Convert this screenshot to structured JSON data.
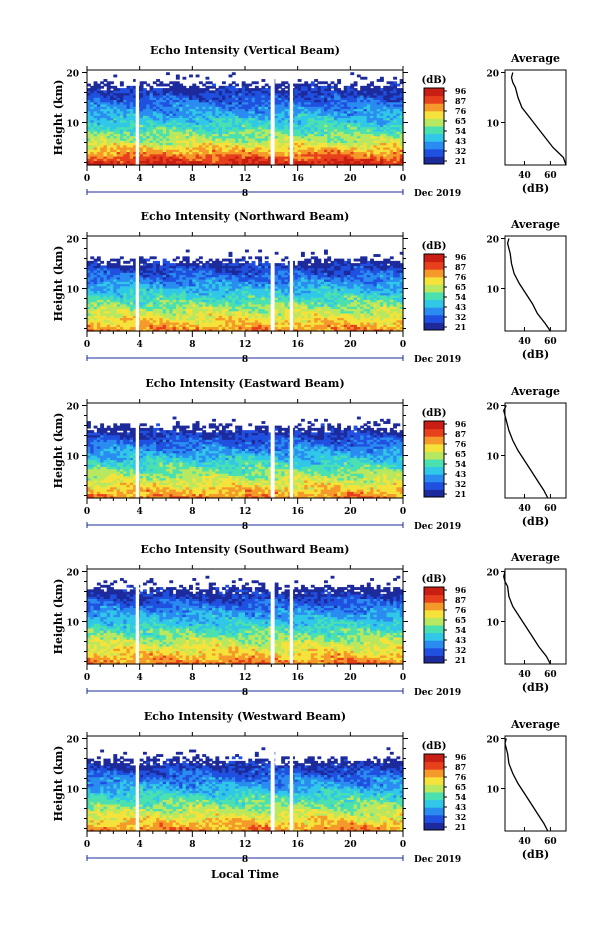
{
  "colorbar": {
    "unit": "(dB)",
    "tick_labels": [
      "96",
      "87",
      "76",
      "65",
      "54",
      "43",
      "32",
      "21"
    ],
    "tick_labels_east_south_west": [
      "96",
      "87",
      "76",
      "65",
      "54",
      "43",
      "32",
      "21"
    ],
    "colors": [
      "#1c2a9c",
      "#2050e0",
      "#2a8cf0",
      "#31c8e8",
      "#4be0b0",
      "#b8e860",
      "#f5e23a",
      "#f59a2a",
      "#e8401c",
      "#c81e14"
    ]
  },
  "xaxis": {
    "tick_labels": [
      "0",
      "4",
      "8",
      "12",
      "16",
      "20",
      "0"
    ],
    "date_label": "Dec 2019",
    "day_label": "8",
    "xlabel": "Local Time"
  },
  "yaxis": {
    "label": "Height (km)",
    "tick_labels": [
      "20",
      "10"
    ]
  },
  "average": {
    "title": "Average",
    "xlabel": "(dB)",
    "x_tick_labels": [
      "40",
      "60"
    ]
  },
  "chart_data": [
    {
      "type": "heatmap",
      "title": "Echo Intensity (Vertical Beam)",
      "x_hours": [
        0,
        24
      ],
      "ylim_km": [
        1.5,
        20.5
      ],
      "clim_db": [
        21,
        96
      ],
      "data_gaps_hours": [
        [
          3.7,
          3.95
        ],
        [
          13.95,
          14.25
        ],
        [
          15.4,
          15.65
        ]
      ],
      "average_profile": {
        "height_km": [
          1.5,
          3,
          5,
          7,
          9,
          11,
          13,
          15,
          17,
          18,
          19,
          20
        ],
        "intensity_db": [
          72,
          70,
          62,
          56,
          50,
          44,
          38,
          35,
          33,
          31,
          30,
          31
        ]
      }
    },
    {
      "type": "heatmap",
      "title": "Echo Intensity (Northward Beam)",
      "x_hours": [
        0,
        24
      ],
      "ylim_km": [
        1.5,
        20.5
      ],
      "clim_db": [
        21,
        96
      ],
      "data_gaps_hours": [
        [
          3.7,
          3.95
        ],
        [
          13.95,
          14.25
        ],
        [
          15.4,
          15.65
        ]
      ],
      "average_profile": {
        "height_km": [
          1.5,
          3,
          5,
          7,
          9,
          11,
          13,
          15,
          17,
          18,
          19,
          20
        ],
        "intensity_db": [
          60,
          56,
          50,
          46,
          41,
          36,
          32,
          30,
          29,
          28,
          27,
          28
        ]
      }
    },
    {
      "type": "heatmap",
      "title": "Echo Intensity (Eastward Beam)",
      "x_hours": [
        0,
        24
      ],
      "ylim_km": [
        1.5,
        20.5
      ],
      "clim_db": [
        21,
        96
      ],
      "data_gaps_hours": [
        [
          3.7,
          3.95
        ],
        [
          13.95,
          14.25
        ],
        [
          15.4,
          15.65
        ]
      ],
      "average_profile": {
        "height_km": [
          1.5,
          3,
          5,
          7,
          9,
          11,
          13,
          15,
          17,
          18,
          19,
          20
        ],
        "intensity_db": [
          58,
          55,
          50,
          45,
          40,
          35,
          31,
          28,
          26,
          25,
          24,
          26
        ]
      }
    },
    {
      "type": "heatmap",
      "title": "Echo Intensity (Southward Beam)",
      "x_hours": [
        0,
        24
      ],
      "ylim_km": [
        1.5,
        20.5
      ],
      "clim_db": [
        21,
        96
      ],
      "data_gaps_hours": [
        [
          3.7,
          3.95
        ],
        [
          13.95,
          14.25
        ],
        [
          15.4,
          15.65
        ]
      ],
      "average_profile": {
        "height_km": [
          1.5,
          3,
          5,
          7,
          9,
          11,
          13,
          15,
          17,
          18,
          19,
          20
        ],
        "intensity_db": [
          60,
          57,
          51,
          46,
          41,
          36,
          31,
          28,
          27,
          25,
          24,
          25
        ]
      }
    },
    {
      "type": "heatmap",
      "title": "Echo Intensity (Westward Beam)",
      "x_hours": [
        0,
        24
      ],
      "ylim_km": [
        1.5,
        20.5
      ],
      "clim_db": [
        21,
        96
      ],
      "data_gaps_hours": [
        [
          3.7,
          3.95
        ],
        [
          13.95,
          14.25
        ],
        [
          15.4,
          15.65
        ]
      ],
      "average_profile": {
        "height_km": [
          1.5,
          3,
          5,
          7,
          9,
          11,
          13,
          15,
          17,
          18,
          19,
          20
        ],
        "intensity_db": [
          58,
          55,
          50,
          45,
          40,
          35,
          31,
          28,
          27,
          26,
          25,
          26
        ]
      }
    }
  ]
}
